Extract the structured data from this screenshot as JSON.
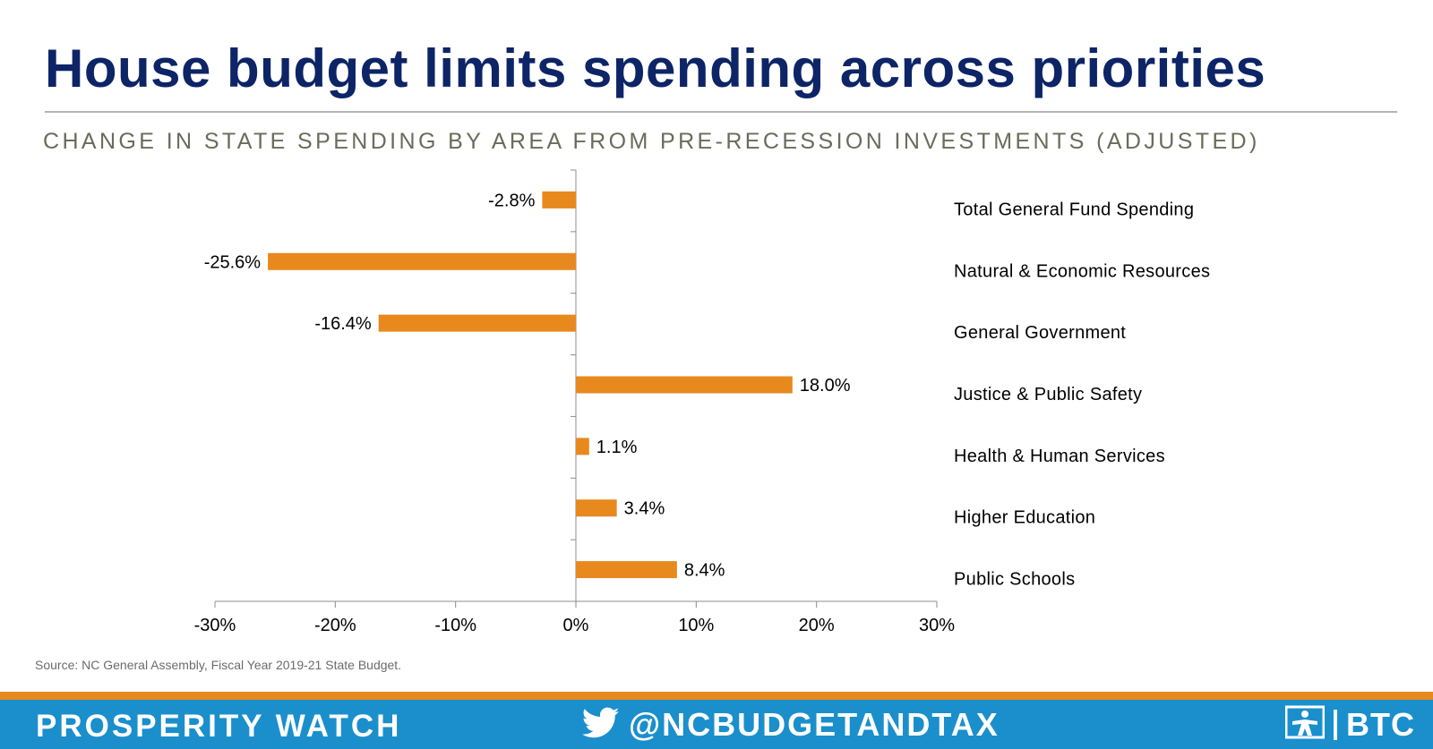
{
  "header": {
    "title": "House budget limits spending across priorities",
    "subtitle": "CHANGE IN STATE SPENDING BY AREA FROM PRE-RECESSION INVESTMENTS (ADJUSTED)"
  },
  "source": "Source: NC General Assembly, Fiscal Year 2019-21 State Budget.",
  "footer": {
    "left_label": "PROSPERITY WATCH",
    "handle": "@NCBUDGETANDTAX",
    "brand": "BTC",
    "bar_color": "#1a8fcc",
    "stripe_color": "#e8891e",
    "icons": [
      "twitter-bird-icon",
      "btc-logo-icon"
    ]
  },
  "chart_data": {
    "type": "bar",
    "orientation": "horizontal",
    "categories": [
      "Total General Fund Spending",
      "Natural & Economic Resources",
      "General Government",
      "Justice & Public Safety",
      "Health & Human Services",
      "Higher Education",
      "Public Schools"
    ],
    "values": [
      -2.8,
      -25.6,
      -16.4,
      18.0,
      1.1,
      3.4,
      8.4
    ],
    "value_labels": [
      "-2.8%",
      "-25.6%",
      "-16.4%",
      "18.0%",
      "1.1%",
      "3.4%",
      "8.4%"
    ],
    "xlim": [
      -30,
      30
    ],
    "xticks": [
      -30,
      -20,
      -10,
      0,
      10,
      20,
      30
    ],
    "xtick_labels": [
      "-30%",
      "-20%",
      "-10%",
      "0%",
      "10%",
      "20%",
      "30%"
    ],
    "bar_color": "#e8891e",
    "grid": false,
    "legend": "none",
    "category_labels_position": "right"
  }
}
